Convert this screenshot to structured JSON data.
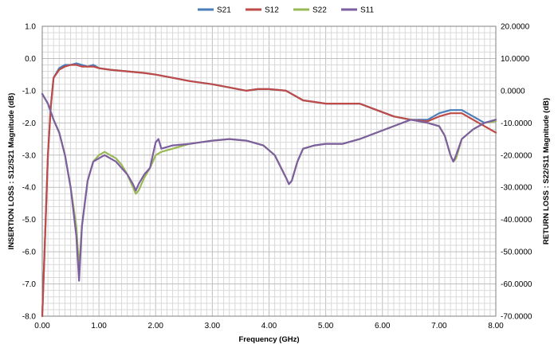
{
  "chart_data": {
    "type": "line",
    "title": "",
    "xlabel": "Frequency (GHz)",
    "ylabel_left": "INSERTION LOSS : S12/S21  Magnitude (dB)",
    "ylabel_right": "RETURN LOSS : S22/S11  Magnitude (dB)",
    "xlim": [
      0,
      8
    ],
    "ylim_left": [
      -8,
      1
    ],
    "ylim_right": [
      -70,
      20
    ],
    "x_ticks": [
      "0.00",
      "1.00",
      "2.00",
      "3.00",
      "4.00",
      "5.00",
      "6.00",
      "7.00",
      "8.00"
    ],
    "y_left_ticks": [
      "1.0",
      "0.0",
      "-1.0",
      "-2.0",
      "-3.0",
      "-4.0",
      "-5.0",
      "-6.0",
      "-7.0",
      "-8.0"
    ],
    "y_right_ticks": [
      "20.0000",
      "10.0000",
      "0.0000",
      "-10.0000",
      "-20.0000",
      "-30.0000",
      "-40.0000",
      "-50.0000",
      "-60.0000",
      "-70.0000"
    ],
    "grid": true,
    "legend_position": "top",
    "series": [
      {
        "name": "S21",
        "axis": "left",
        "color": "#4a7ebb",
        "x": [
          0.0,
          0.05,
          0.1,
          0.15,
          0.2,
          0.3,
          0.4,
          0.5,
          0.6,
          0.7,
          0.8,
          0.9,
          1.0,
          1.2,
          1.5,
          1.8,
          2.0,
          2.3,
          2.6,
          3.0,
          3.3,
          3.6,
          3.8,
          4.0,
          4.3,
          4.6,
          4.8,
          5.0,
          5.3,
          5.6,
          5.9,
          6.2,
          6.5,
          6.8,
          7.0,
          7.2,
          7.4,
          7.6,
          7.8,
          8.0
        ],
        "values": [
          -8.0,
          -5.5,
          -3.0,
          -1.5,
          -0.6,
          -0.3,
          -0.2,
          -0.2,
          -0.15,
          -0.2,
          -0.25,
          -0.2,
          -0.3,
          -0.35,
          -0.4,
          -0.45,
          -0.5,
          -0.6,
          -0.7,
          -0.8,
          -0.9,
          -1.0,
          -0.95,
          -0.95,
          -1.0,
          -1.3,
          -1.35,
          -1.4,
          -1.4,
          -1.4,
          -1.6,
          -1.8,
          -1.9,
          -1.9,
          -1.7,
          -1.6,
          -1.6,
          -1.8,
          -2.0,
          -1.9
        ]
      },
      {
        "name": "S12",
        "axis": "left",
        "color": "#be4b48",
        "x": [
          0.0,
          0.05,
          0.1,
          0.15,
          0.2,
          0.3,
          0.4,
          0.5,
          0.6,
          0.7,
          0.8,
          0.9,
          1.0,
          1.2,
          1.5,
          1.8,
          2.0,
          2.3,
          2.6,
          3.0,
          3.3,
          3.6,
          3.8,
          4.0,
          4.3,
          4.6,
          4.8,
          5.0,
          5.3,
          5.6,
          5.9,
          6.2,
          6.5,
          6.8,
          7.0,
          7.2,
          7.4,
          7.6,
          7.8,
          8.0
        ],
        "values": [
          -8.0,
          -5.5,
          -3.0,
          -1.5,
          -0.6,
          -0.35,
          -0.25,
          -0.2,
          -0.2,
          -0.25,
          -0.25,
          -0.25,
          -0.3,
          -0.35,
          -0.4,
          -0.45,
          -0.5,
          -0.6,
          -0.7,
          -0.8,
          -0.9,
          -1.0,
          -0.95,
          -0.95,
          -1.0,
          -1.3,
          -1.35,
          -1.4,
          -1.4,
          -1.4,
          -1.6,
          -1.8,
          -1.9,
          -1.95,
          -1.8,
          -1.7,
          -1.7,
          -1.9,
          -2.1,
          -2.3
        ]
      },
      {
        "name": "S22",
        "axis": "right",
        "color": "#98b954",
        "x": [
          0.0,
          0.1,
          0.2,
          0.3,
          0.4,
          0.5,
          0.6,
          0.65,
          0.7,
          0.8,
          0.9,
          1.0,
          1.1,
          1.2,
          1.3,
          1.4,
          1.5,
          1.6,
          1.65,
          1.7,
          1.8,
          1.9,
          2.0,
          2.1,
          2.3,
          2.6,
          3.0,
          3.3,
          3.6,
          3.9,
          4.1,
          4.3,
          4.35,
          4.4,
          4.5,
          4.6,
          4.8,
          5.0,
          5.3,
          5.6,
          5.9,
          6.2,
          6.5,
          6.8,
          7.0,
          7.1,
          7.2,
          7.25,
          7.3,
          7.4,
          7.6,
          7.8,
          8.0
        ],
        "values": [
          -1.0,
          -4.0,
          -9.0,
          -13.0,
          -20.0,
          -30.0,
          -42.0,
          -55.0,
          -42.0,
          -28.0,
          -22.0,
          -20.0,
          -19.0,
          -20.0,
          -21.0,
          -23.0,
          -26.0,
          -30.0,
          -32.0,
          -31.0,
          -27.0,
          -24.0,
          -20.0,
          -19.0,
          -18.0,
          -16.5,
          -15.5,
          -15.0,
          -15.5,
          -17.0,
          -20.0,
          -27.0,
          -29.0,
          -28.0,
          -22.0,
          -18.0,
          -17.0,
          -16.5,
          -16.5,
          -15.0,
          -13.0,
          -11.0,
          -9.0,
          -10.0,
          -11.0,
          -14.0,
          -20.0,
          -22.0,
          -21.0,
          -15.0,
          -12.0,
          -10.0,
          -9.5
        ]
      },
      {
        "name": "S11",
        "axis": "right",
        "color": "#7d5fa0",
        "x": [
          0.0,
          0.1,
          0.2,
          0.3,
          0.4,
          0.5,
          0.6,
          0.65,
          0.7,
          0.8,
          0.9,
          1.0,
          1.1,
          1.2,
          1.3,
          1.4,
          1.5,
          1.6,
          1.65,
          1.7,
          1.8,
          1.9,
          2.0,
          2.05,
          2.1,
          2.3,
          2.6,
          3.0,
          3.3,
          3.6,
          3.9,
          4.1,
          4.3,
          4.35,
          4.4,
          4.5,
          4.6,
          4.8,
          5.0,
          5.3,
          5.6,
          5.9,
          6.2,
          6.5,
          6.8,
          7.0,
          7.1,
          7.2,
          7.25,
          7.3,
          7.4,
          7.6,
          7.8,
          8.0
        ],
        "values": [
          -1.0,
          -4.0,
          -9.0,
          -13.0,
          -20.0,
          -30.0,
          -45.0,
          -59.0,
          -42.0,
          -28.0,
          -22.0,
          -21.0,
          -20.0,
          -21.0,
          -22.0,
          -24.0,
          -26.0,
          -29.0,
          -31.0,
          -29.0,
          -26.0,
          -24.0,
          -16.0,
          -15.0,
          -18.0,
          -17.0,
          -16.5,
          -15.5,
          -15.0,
          -15.5,
          -17.0,
          -20.0,
          -27.0,
          -29.0,
          -28.0,
          -22.0,
          -18.0,
          -17.0,
          -16.5,
          -16.5,
          -15.0,
          -13.0,
          -11.0,
          -9.0,
          -10.0,
          -11.0,
          -14.0,
          -20.0,
          -22.0,
          -20.0,
          -15.0,
          -12.0,
          -10.0,
          -9.0
        ]
      }
    ]
  }
}
